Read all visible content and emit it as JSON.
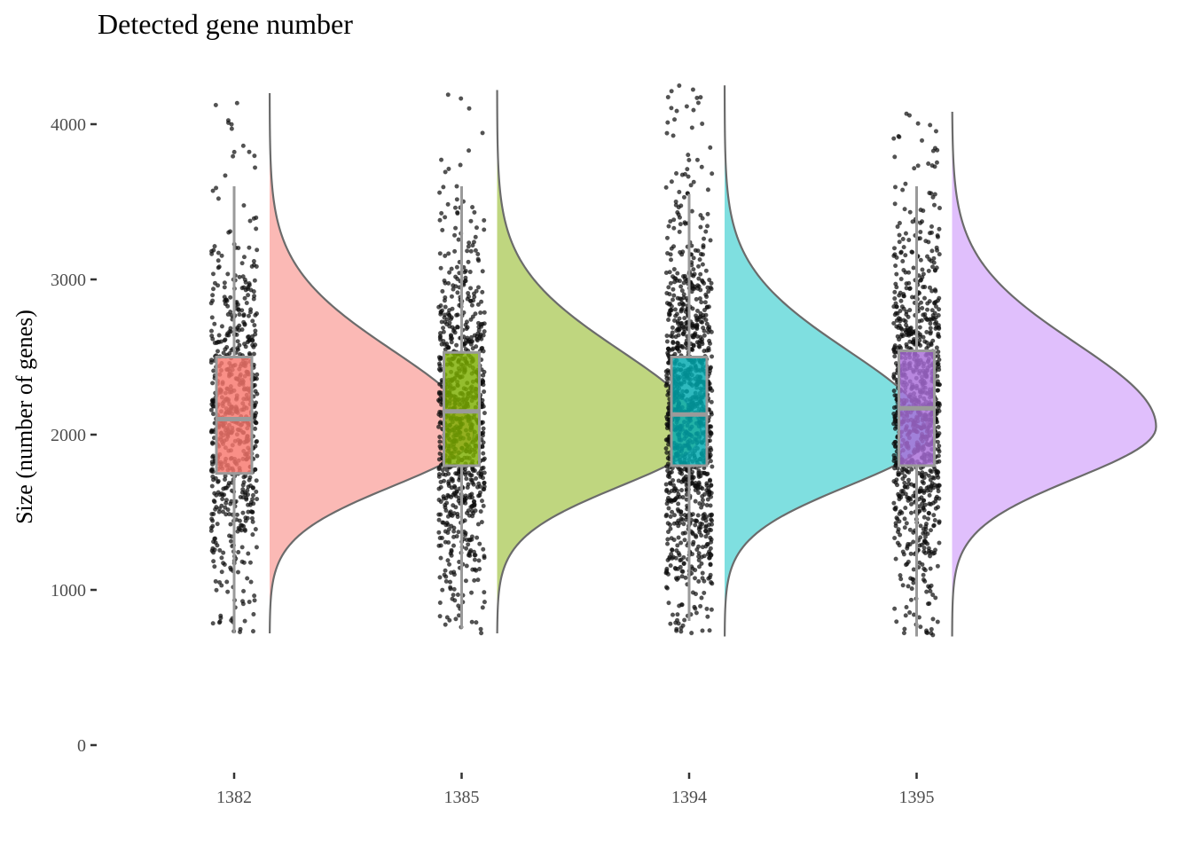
{
  "chart_data": {
    "type": "raincloud",
    "title": "Detected gene number",
    "xlabel": "",
    "ylabel": "Size (number of genes)",
    "ylim": [
      0,
      4250
    ],
    "y_ticks": [
      0,
      1000,
      2000,
      3000,
      4000
    ],
    "y_tick_labels": [
      "0",
      "1000",
      "2000",
      "3000",
      "4000"
    ],
    "grid": false,
    "legend": "none",
    "categories": [
      "1382",
      "1385",
      "1394",
      "1395"
    ],
    "series": [
      {
        "name": "1382",
        "box_color": "#F8766D",
        "density_color": "#FBB9B5",
        "box": {
          "q1": 1750,
          "median": 2100,
          "q3": 2500,
          "whisker_low": 720,
          "whisker_high": 3600
        },
        "density": {
          "min": 720,
          "max": 4200,
          "peak": 2000,
          "sd_low": 330,
          "sd_high": 540
        },
        "points": {
          "count": 700,
          "min": 720,
          "max": 4200,
          "center": 2100,
          "spread": 580
        }
      },
      {
        "name": "1385",
        "box_color": "#7CAE00",
        "density_color": "#BFD67F",
        "box": {
          "q1": 1800,
          "median": 2150,
          "q3": 2530,
          "whisker_low": 750,
          "whisker_high": 3600
        },
        "density": {
          "min": 720,
          "max": 4220,
          "peak": 2000,
          "sd_low": 330,
          "sd_high": 540
        },
        "points": {
          "count": 850,
          "min": 720,
          "max": 4220,
          "center": 2150,
          "spread": 580
        }
      },
      {
        "name": "1394",
        "box_color": "#00A9B0",
        "density_color": "#7FDFE0",
        "box": {
          "q1": 1800,
          "median": 2130,
          "q3": 2500,
          "whisker_low": 800,
          "whisker_high": 3550
        },
        "density": {
          "min": 700,
          "max": 4250,
          "peak": 2000,
          "sd_low": 330,
          "sd_high": 540
        },
        "points": {
          "count": 1150,
          "min": 700,
          "max": 4250,
          "center": 2130,
          "spread": 600
        }
      },
      {
        "name": "1395",
        "box_color": "#A86DD8",
        "density_color": "#E0BFFC",
        "box": {
          "q1": 1800,
          "median": 2170,
          "q3": 2540,
          "whisker_low": 700,
          "whisker_high": 3600
        },
        "density": {
          "min": 700,
          "max": 4080,
          "peak": 2050,
          "sd_low": 330,
          "sd_high": 540
        },
        "points": {
          "count": 1000,
          "min": 700,
          "max": 4080,
          "center": 2170,
          "spread": 580
        }
      }
    ]
  }
}
